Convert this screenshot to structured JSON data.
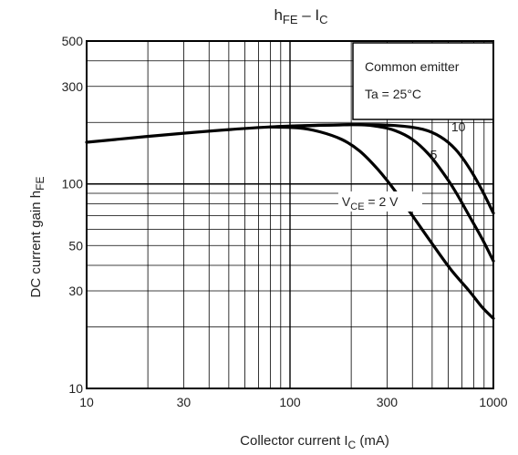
{
  "chart_data": {
    "type": "line",
    "title": {
      "main": "h",
      "sub": "FE",
      "dash": " – I",
      "sub2": "C"
    },
    "xlabel": {
      "main": "Collector current   I",
      "sub": "C",
      "unit": "   (mA)"
    },
    "ylabel": {
      "main": "DC current gain   h",
      "sub": "FE"
    },
    "x_scale": "log",
    "y_scale": "log",
    "xlim": [
      10,
      1000
    ],
    "ylim": [
      10,
      500
    ],
    "x_ticks": [
      10,
      30,
      100,
      300,
      1000
    ],
    "x_tick_labels": [
      "10",
      "30",
      "100",
      "300",
      "1000"
    ],
    "y_ticks": [
      10,
      30,
      50,
      100,
      300,
      500
    ],
    "y_tick_labels": [
      "10",
      "30",
      "50",
      "100",
      "300",
      "500"
    ],
    "grid": true,
    "conditions_box": {
      "line1": "Common emitter",
      "line2": "Ta = 25°C"
    },
    "series": [
      {
        "name": "10",
        "points": [
          [
            10,
            160
          ],
          [
            30,
            177
          ],
          [
            80,
            190
          ],
          [
            200,
            195
          ],
          [
            330,
            193
          ],
          [
            450,
            185
          ],
          [
            550,
            170
          ],
          [
            650,
            148
          ],
          [
            760,
            120
          ],
          [
            880,
            93
          ],
          [
            1000,
            72
          ]
        ]
      },
      {
        "name": "5",
        "points": [
          [
            80,
            190
          ],
          [
            200,
            195
          ],
          [
            270,
            191
          ],
          [
            330,
            182
          ],
          [
            400,
            165
          ],
          [
            480,
            140
          ],
          [
            560,
            115
          ],
          [
            650,
            92
          ],
          [
            760,
            70
          ],
          [
            880,
            54
          ],
          [
            1000,
            42
          ]
        ]
      },
      {
        "name": "V_CE = 2 V",
        "label_main": "V",
        "label_sub": "CE",
        "label_rest": " = 2 V",
        "points": [
          [
            80,
            190
          ],
          [
            110,
            188
          ],
          [
            140,
            180
          ],
          [
            180,
            165
          ],
          [
            220,
            145
          ],
          [
            270,
            118
          ],
          [
            330,
            92
          ],
          [
            400,
            70
          ],
          [
            500,
            51
          ],
          [
            620,
            38
          ],
          [
            760,
            30
          ],
          [
            880,
            25
          ],
          [
            1000,
            22
          ]
        ]
      }
    ]
  }
}
